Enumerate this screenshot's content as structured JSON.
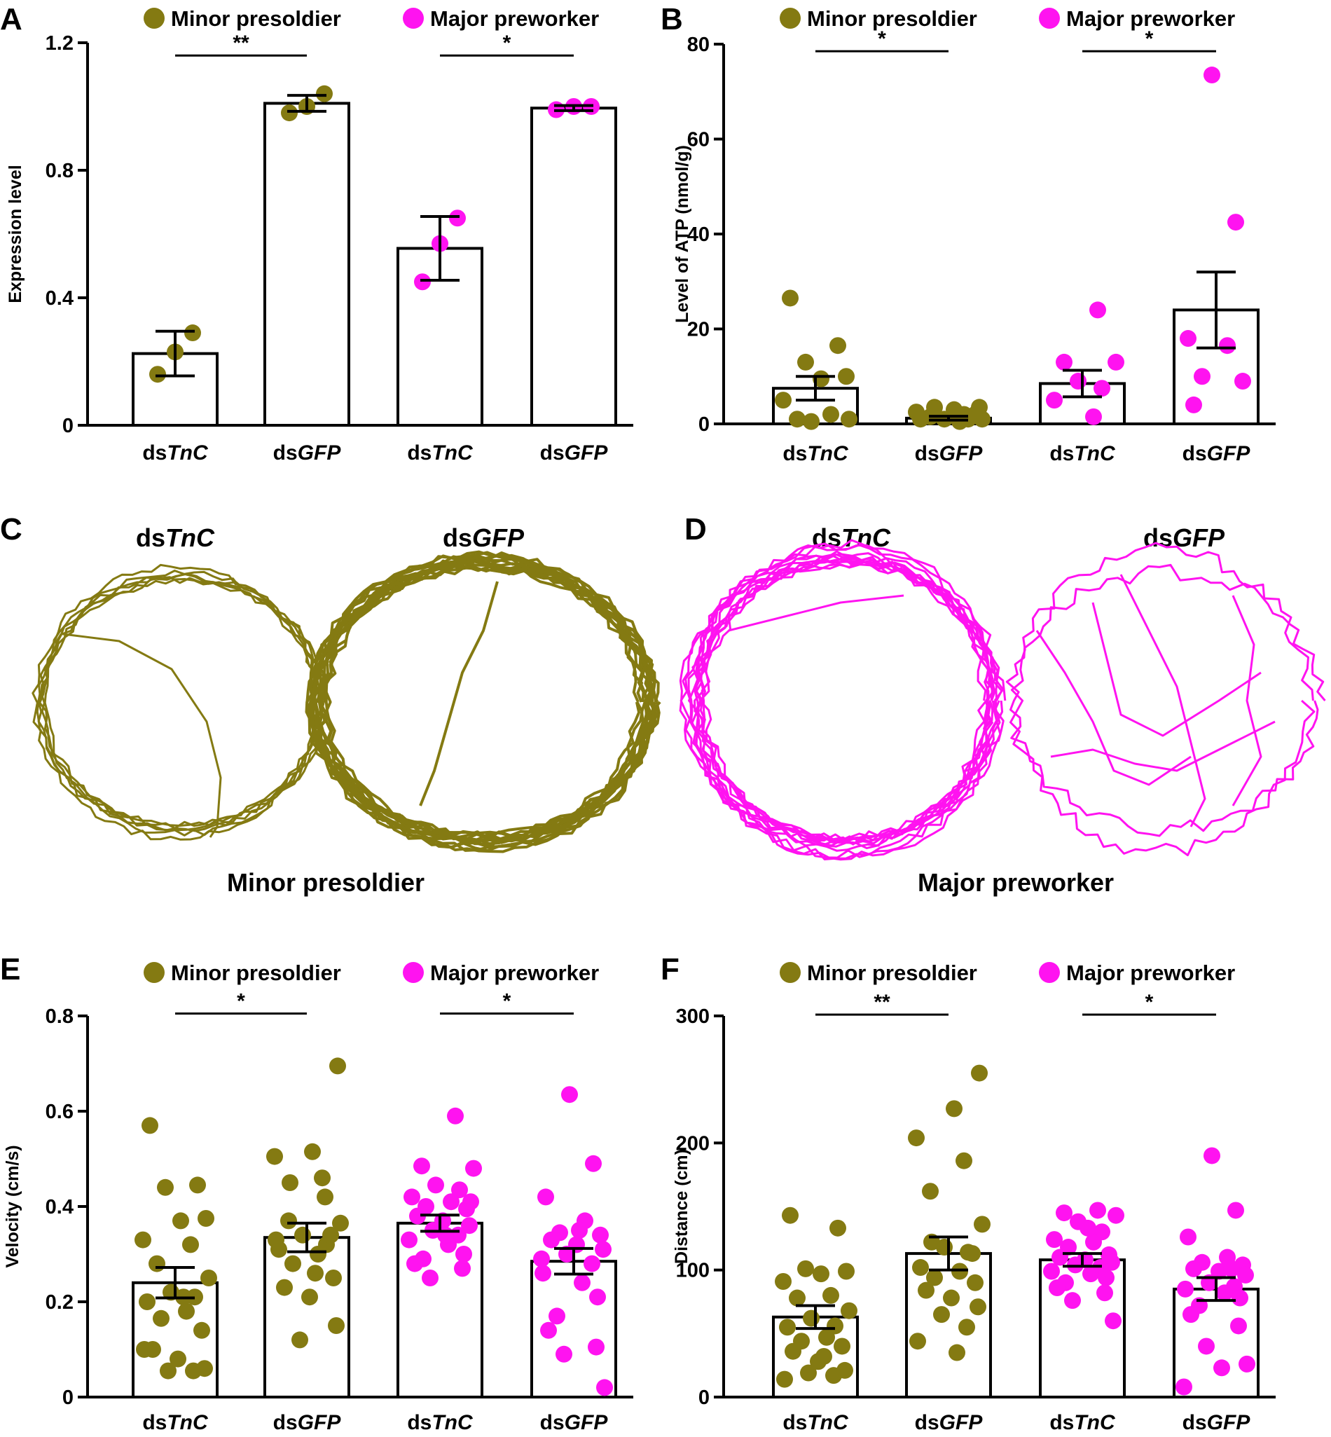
{
  "colors": {
    "minor": "#847a12",
    "major": "#ff13f0",
    "axis": "#000000"
  },
  "legend": {
    "minor_label": "Minor presoldier",
    "major_label": "Major preworker"
  },
  "category_prefix": "ds",
  "category_genes": [
    "TnC",
    "GFP",
    "TnC",
    "GFP"
  ],
  "panels": {
    "C": {
      "letter": "C",
      "left_title_gene": "TnC",
      "right_title_gene": "GFP",
      "caption": "Minor presoldier",
      "group": "minor"
    },
    "D": {
      "letter": "D",
      "left_title_gene": "TnC",
      "right_title_gene": "GFP",
      "caption": "Major preworker",
      "group": "major"
    }
  },
  "chart_data": [
    {
      "id": "A",
      "type": "bar",
      "ylabel": "Expression level",
      "ylim": [
        0,
        1.2
      ],
      "yticks": [
        0,
        0.4,
        0.8,
        1.2
      ],
      "ytick_labels": [
        "0",
        "0.4",
        "0.8",
        "1.2"
      ],
      "categories": [
        "dsTnC",
        "dsGFP",
        "dsTnC",
        "dsGFP"
      ],
      "groups": [
        "minor",
        "minor",
        "major",
        "major"
      ],
      "values": [
        0.225,
        1.01,
        0.555,
        0.995
      ],
      "errors": [
        0.07,
        0.025,
        0.1,
        0.008
      ],
      "points": [
        [
          0.16,
          0.23,
          0.29
        ],
        [
          0.98,
          1.0,
          1.04
        ],
        [
          0.45,
          0.57,
          0.65
        ],
        [
          0.99,
          1.0,
          1.0
        ]
      ],
      "significance": [
        {
          "pair": [
            0,
            1
          ],
          "label": "**",
          "y": 1.16
        },
        {
          "pair": [
            2,
            3
          ],
          "label": "*",
          "y": 1.16
        }
      ]
    },
    {
      "id": "B",
      "type": "bar",
      "ylabel": "Level of ATP (nmol/g)",
      "ylim": [
        0,
        80
      ],
      "yticks": [
        0,
        20,
        40,
        60,
        80
      ],
      "ytick_labels": [
        "0",
        "20",
        "40",
        "60",
        "80"
      ],
      "categories": [
        "dsTnC",
        "dsGFP",
        "dsTnC",
        "dsGFP"
      ],
      "groups": [
        "minor",
        "minor",
        "major",
        "major"
      ],
      "values": [
        7.5,
        1.2,
        8.5,
        24
      ],
      "errors": [
        2.5,
        0.4,
        2.8,
        8
      ],
      "points": [
        [
          26.5,
          16.5,
          13,
          10,
          9.5,
          5,
          2,
          1,
          1,
          0.5
        ],
        [
          3.5,
          3,
          2.5,
          2,
          1.5,
          1,
          1,
          1,
          1,
          0.5,
          3.5,
          2
        ],
        [
          24,
          13,
          13,
          9,
          7.5,
          5,
          1.5
        ],
        [
          73.5,
          42.5,
          18,
          16.5,
          10,
          9,
          4
        ]
      ],
      "significance": [
        {
          "pair": [
            0,
            1
          ],
          "label": "*",
          "y": 78.5
        },
        {
          "pair": [
            2,
            3
          ],
          "label": "*",
          "y": 78.5
        }
      ]
    },
    {
      "id": "E",
      "type": "bar",
      "ylabel": "Velocity (cm/s)",
      "ylim": [
        0,
        0.8
      ],
      "yticks": [
        0,
        0.2,
        0.4,
        0.6,
        0.8
      ],
      "ytick_labels": [
        "0",
        "0.2",
        "0.4",
        "0.6",
        "0.8"
      ],
      "categories": [
        "dsTnC",
        "dsGFP",
        "dsTnC",
        "dsGFP"
      ],
      "groups": [
        "minor",
        "minor",
        "major",
        "major"
      ],
      "values": [
        0.24,
        0.335,
        0.365,
        0.285
      ],
      "errors": [
        0.032,
        0.03,
        0.017,
        0.027
      ],
      "points": [
        [
          0.57,
          0.445,
          0.44,
          0.375,
          0.37,
          0.33,
          0.32,
          0.28,
          0.25,
          0.22,
          0.21,
          0.2,
          0.18,
          0.165,
          0.14,
          0.1,
          0.08,
          0.06,
          0.055,
          0.055,
          0.1,
          0.21
        ],
        [
          0.695,
          0.515,
          0.505,
          0.46,
          0.37,
          0.365,
          0.34,
          0.32,
          0.31,
          0.3,
          0.28,
          0.25,
          0.23,
          0.21,
          0.15,
          0.12,
          0.42,
          0.33,
          0.26,
          0.34,
          0.45
        ],
        [
          0.59,
          0.485,
          0.48,
          0.445,
          0.435,
          0.42,
          0.41,
          0.4,
          0.395,
          0.38,
          0.37,
          0.36,
          0.35,
          0.34,
          0.33,
          0.32,
          0.3,
          0.29,
          0.28,
          0.27,
          0.25,
          0.41,
          0.34
        ],
        [
          0.635,
          0.49,
          0.42,
          0.37,
          0.345,
          0.34,
          0.33,
          0.32,
          0.31,
          0.3,
          0.28,
          0.26,
          0.24,
          0.21,
          0.17,
          0.14,
          0.105,
          0.09,
          0.02,
          0.35,
          0.29
        ]
      ],
      "significance": [
        {
          "pair": [
            0,
            1
          ],
          "label": "*",
          "y": 0.805
        },
        {
          "pair": [
            2,
            3
          ],
          "label": "*",
          "y": 0.805
        }
      ]
    },
    {
      "id": "F",
      "type": "bar",
      "ylabel": "Distance (cm)",
      "ylim": [
        0,
        300
      ],
      "yticks": [
        0,
        100,
        200,
        300
      ],
      "ytick_labels": [
        "0",
        "100",
        "200",
        "300"
      ],
      "categories": [
        "dsTnC",
        "dsGFP",
        "dsTnC",
        "dsGFP"
      ],
      "groups": [
        "minor",
        "minor",
        "major",
        "major"
      ],
      "values": [
        63,
        113,
        108,
        85
      ],
      "errors": [
        9,
        13,
        5,
        9
      ],
      "points": [
        [
          143,
          133,
          101,
          99,
          97,
          91,
          80,
          78,
          68,
          62,
          56,
          55,
          47,
          44,
          40,
          36,
          28,
          21,
          19,
          17,
          14,
          32
        ],
        [
          255,
          227,
          204,
          186,
          162,
          136,
          118,
          114,
          102,
          99,
          94,
          90,
          84,
          78,
          71,
          65,
          55,
          44,
          35,
          113,
          122
        ],
        [
          147,
          145,
          143,
          138,
          130,
          124,
          122,
          118,
          112,
          110,
          108,
          106,
          104,
          102,
          99,
          97,
          94,
          90,
          86,
          82,
          76,
          60,
          133
        ],
        [
          190,
          147,
          126,
          110,
          106,
          104,
          101,
          99,
          96,
          90,
          87,
          85,
          82,
          78,
          72,
          65,
          56,
          40,
          26,
          23,
          8,
          101
        ]
      ],
      "significance": [
        {
          "pair": [
            0,
            1
          ],
          "label": "**",
          "y": 301
        },
        {
          "pair": [
            2,
            3
          ],
          "label": "*",
          "y": 301
        }
      ]
    }
  ]
}
